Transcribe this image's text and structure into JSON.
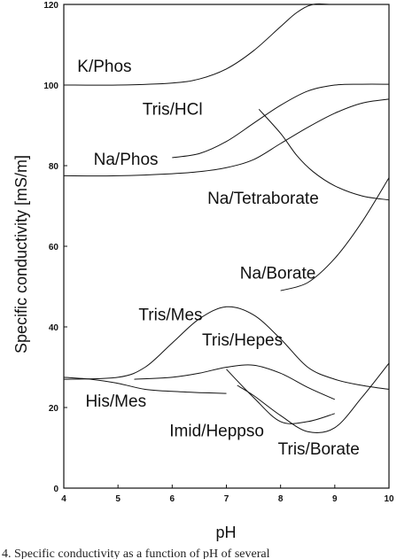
{
  "chart_data": {
    "type": "line",
    "title": "",
    "xlabel": "pH",
    "ylabel": "Specific conductivity [mS/m]",
    "xlim": [
      4,
      10
    ],
    "ylim": [
      0,
      120
    ],
    "xticks": [
      "4",
      "5",
      "6",
      "7",
      "8",
      "9",
      "10"
    ],
    "yticks": [
      "0",
      "20",
      "40",
      "60",
      "80",
      "100",
      "120"
    ],
    "grid": false,
    "legend": "none",
    "series": [
      {
        "name": "K/Phos",
        "x": [
          4,
          5,
          6,
          6.5,
          7,
          7.5,
          8,
          8.3,
          8.6,
          9,
          10
        ],
        "y": [
          100,
          100,
          100.5,
          101.5,
          104,
          108.5,
          114.5,
          118,
          120,
          120,
          120
        ]
      },
      {
        "name": "Tris/HCl",
        "x": [
          6,
          6.5,
          7,
          7.5,
          8,
          8.5,
          9,
          9.5,
          10
        ],
        "y": [
          82,
          83,
          86,
          90.5,
          95,
          98.5,
          100,
          100.2,
          100.2
        ]
      },
      {
        "name": "Na/Phos",
        "x": [
          4,
          5,
          6,
          6.5,
          7,
          7.5,
          8,
          8.5,
          9,
          9.5,
          10
        ],
        "y": [
          77.5,
          77.5,
          78,
          78.5,
          79.5,
          81.5,
          85.5,
          89.5,
          93,
          95.5,
          96.5
        ]
      },
      {
        "name": "Na/Tetraborate",
        "x": [
          7.6,
          8,
          8.3,
          8.6,
          9,
          9.5,
          10
        ],
        "y": [
          94,
          88,
          82.5,
          78.5,
          75,
          72.5,
          71.5
        ]
      },
      {
        "name": "Na/Borate",
        "x": [
          8,
          8.5,
          9,
          9.5,
          10
        ],
        "y": [
          49,
          51,
          57,
          66,
          77
        ]
      },
      {
        "name": "Tris/Mes",
        "x": [
          4,
          5,
          5.5,
          6,
          6.5,
          7,
          7.5,
          8,
          8.5,
          9,
          9.5,
          10
        ],
        "y": [
          27,
          27.5,
          30,
          36,
          42,
          45,
          43,
          37,
          30,
          27,
          25.5,
          24.5
        ]
      },
      {
        "name": "Tris/Hepes",
        "x": [
          5.3,
          6,
          6.5,
          7,
          7.5,
          8,
          8.5,
          9
        ],
        "y": [
          27,
          27.5,
          28.5,
          30,
          30.5,
          28.5,
          25,
          22
        ]
      },
      {
        "name": "His/Mes",
        "x": [
          4,
          4.5,
          5,
          5.5,
          6,
          6.5,
          7
        ],
        "y": [
          27.5,
          27,
          26,
          24.5,
          24,
          23.7,
          23.5
        ]
      },
      {
        "name": "Imid/Heppso",
        "x": [
          7,
          7.5,
          8,
          8.5,
          9
        ],
        "y": [
          29.5,
          22.5,
          16.5,
          16.5,
          18.5
        ]
      },
      {
        "name": "Tris/Borate",
        "x": [
          7.2,
          7.5,
          8,
          8.5,
          9,
          9.5,
          10
        ],
        "y": [
          25.5,
          23,
          18,
          14,
          15,
          22.5,
          31
        ]
      }
    ],
    "annotations": [
      "K/Phos",
      "Tris/HCl",
      "Na/Phos",
      "Na/Tetraborate",
      "Na/Borate",
      "Tris/Mes",
      "Tris/Hepes",
      "His/Mes",
      "Imid/Heppso",
      "Tris/Borate"
    ]
  },
  "caption": "4. Specific conductivity as a function of pH of several"
}
